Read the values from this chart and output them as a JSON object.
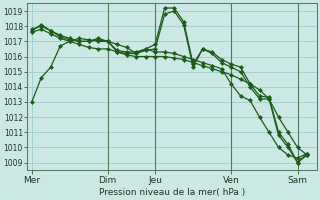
{
  "bg_color": "#cce8e4",
  "grid_color": "#99cccc",
  "line_color": "#1a5c1a",
  "marker_color": "#1a5c1a",
  "xlabel": "Pression niveau de la mer( hPa )",
  "ylim": [
    1008.5,
    1019.5
  ],
  "yticks": [
    1009,
    1010,
    1011,
    1012,
    1013,
    1014,
    1015,
    1016,
    1017,
    1018,
    1019
  ],
  "xtick_labels": [
    "Mer",
    "Dim",
    "Jeu",
    "Ven",
    "Sam"
  ],
  "xtick_positions": [
    0,
    8,
    13,
    21,
    28
  ],
  "xlim": [
    -0.5,
    30
  ],
  "vline_positions": [
    8,
    13,
    21,
    28
  ],
  "vline_color": "#4a7a5a",
  "series": [
    {
      "x": [
        0,
        1,
        2,
        3,
        4,
        5,
        6,
        7,
        8,
        9,
        10,
        11,
        12,
        13,
        14,
        15,
        16,
        17,
        18,
        19,
        20,
        21,
        22,
        23,
        24,
        25,
        26,
        27,
        28,
        29
      ],
      "y": [
        1013.0,
        1014.6,
        1015.3,
        1016.7,
        1017.0,
        1017.2,
        1017.1,
        1017.0,
        1017.0,
        1016.8,
        1016.6,
        1016.2,
        1016.5,
        1016.3,
        1016.3,
        1016.2,
        1016.0,
        1015.8,
        1015.6,
        1015.4,
        1015.2,
        1014.2,
        1013.4,
        1013.1,
        1012.0,
        1011.0,
        1010.0,
        1009.5,
        1009.3,
        1009.6
      ]
    },
    {
      "x": [
        0,
        1,
        2,
        3,
        4,
        5,
        6,
        7,
        8,
        9,
        10,
        11,
        12,
        13,
        14,
        15,
        16,
        17,
        18,
        19,
        20,
        21,
        22,
        23,
        24,
        25,
        26,
        27,
        28,
        29
      ],
      "y": [
        1017.8,
        1018.0,
        1017.7,
        1017.4,
        1017.2,
        1017.0,
        1017.0,
        1017.1,
        1017.0,
        1016.4,
        1016.3,
        1016.3,
        1016.5,
        1016.8,
        1019.2,
        1019.2,
        1018.3,
        1015.5,
        1016.5,
        1016.3,
        1015.8,
        1015.5,
        1015.3,
        1014.2,
        1013.4,
        1013.3,
        1011.0,
        1010.2,
        1009.0,
        1009.6
      ]
    },
    {
      "x": [
        0,
        1,
        2,
        3,
        4,
        5,
        6,
        7,
        8,
        9,
        10,
        11,
        12,
        13,
        14,
        15,
        16,
        17,
        18,
        19,
        20,
        21,
        22,
        23,
        24,
        25,
        26,
        27,
        28,
        29
      ],
      "y": [
        1017.7,
        1018.1,
        1017.7,
        1017.3,
        1017.1,
        1017.0,
        1017.0,
        1017.2,
        1017.0,
        1016.3,
        1016.2,
        1016.2,
        1016.4,
        1016.5,
        1018.8,
        1019.0,
        1018.1,
        1015.3,
        1016.5,
        1016.2,
        1015.6,
        1015.3,
        1015.0,
        1014.0,
        1013.2,
        1013.2,
        1010.8,
        1010.0,
        1009.0,
        1009.5
      ]
    },
    {
      "x": [
        0,
        1,
        2,
        3,
        4,
        5,
        6,
        7,
        8,
        9,
        10,
        11,
        12,
        13,
        14,
        15,
        16,
        17,
        18,
        19,
        20,
        21,
        22,
        23,
        24,
        25,
        26,
        27,
        28,
        29
      ],
      "y": [
        1017.6,
        1017.8,
        1017.5,
        1017.2,
        1017.0,
        1016.8,
        1016.6,
        1016.5,
        1016.5,
        1016.3,
        1016.1,
        1016.0,
        1016.0,
        1016.0,
        1016.0,
        1015.9,
        1015.8,
        1015.6,
        1015.4,
        1015.2,
        1015.0,
        1014.8,
        1014.5,
        1014.2,
        1013.8,
        1013.2,
        1012.0,
        1011.0,
        1010.0,
        1009.5
      ]
    }
  ]
}
